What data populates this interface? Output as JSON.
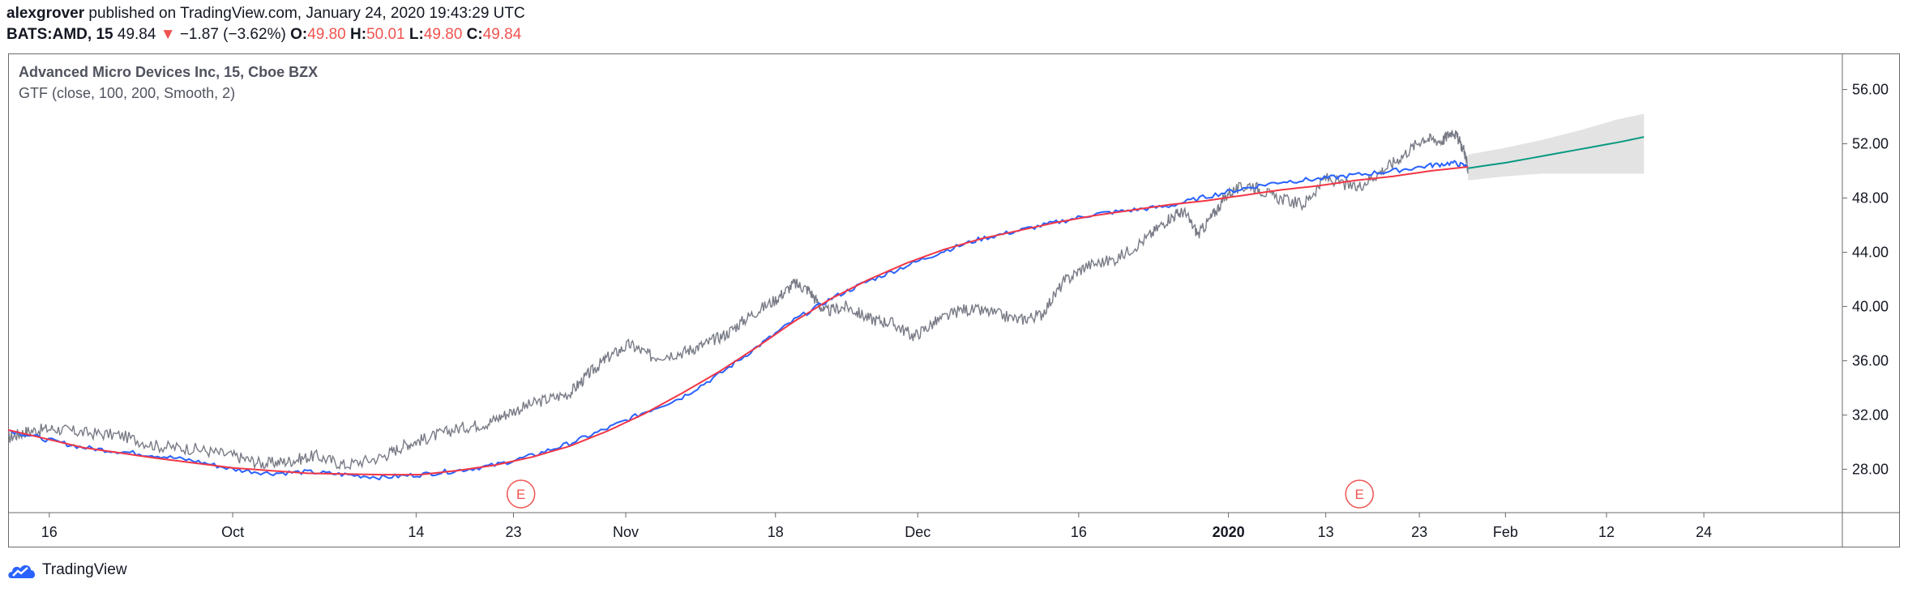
{
  "header": {
    "author": "alexgrover",
    "published_text": "published on TradingView.com, January 24, 2020 19:43:29 UTC",
    "symbol": "BATS:AMD, 15",
    "price": "49.84",
    "change": "−1.87 (−3.62%)",
    "open_label": "O:",
    "open": "49.80",
    "high_label": "H:",
    "high": "50.01",
    "low_label": "L:",
    "low": "49.80",
    "close_label": "C:",
    "close": "49.84"
  },
  "legend": {
    "title": "Advanced Micro Devices Inc, 15, Cboe BZX",
    "indicator": "GTF (close, 100, 200, Smooth, 2)"
  },
  "footer": {
    "brand": "TradingView"
  },
  "chart_data": {
    "type": "line",
    "x_tick_labels": [
      "16",
      "Oct",
      "14",
      "23",
      "Nov",
      "18",
      "Dec",
      "16",
      "2020",
      "13",
      "23",
      "Feb",
      "12",
      "24"
    ],
    "x_tick_pos": [
      0.11,
      0.6,
      1.09,
      1.35,
      1.65,
      2.05,
      2.43,
      2.86,
      3.26,
      3.52,
      3.77,
      4.0,
      4.27,
      4.53
    ],
    "y_ticks": [
      28,
      32,
      36,
      40,
      44,
      48,
      52,
      56
    ],
    "y_tick_labels": [
      "28.00",
      "32.00",
      "36.00",
      "40.00",
      "44.00",
      "48.00",
      "52.00",
      "56.00"
    ],
    "ylim": [
      24.8,
      58.6
    ],
    "xlim": [
      0,
      4.9
    ],
    "earnings_markers": [
      {
        "x": 1.37,
        "label": "E"
      },
      {
        "x": 3.61,
        "label": "E"
      }
    ],
    "series": [
      {
        "color": "#787b86",
        "style": "price",
        "points": [
          [
            0,
            30.3
          ],
          [
            0.05,
            30.8
          ],
          [
            0.12,
            31.0
          ],
          [
            0.2,
            30.7
          ],
          [
            0.3,
            30.5
          ],
          [
            0.4,
            29.7
          ],
          [
            0.5,
            29.5
          ],
          [
            0.6,
            29.0
          ],
          [
            0.68,
            28.4
          ],
          [
            0.75,
            28.6
          ],
          [
            0.82,
            29.0
          ],
          [
            0.9,
            28.3
          ],
          [
            1.0,
            28.9
          ],
          [
            1.06,
            29.8
          ],
          [
            1.12,
            30.3
          ],
          [
            1.2,
            31.0
          ],
          [
            1.28,
            31.4
          ],
          [
            1.34,
            32.2
          ],
          [
            1.42,
            33.0
          ],
          [
            1.5,
            33.6
          ],
          [
            1.55,
            35.0
          ],
          [
            1.6,
            36.2
          ],
          [
            1.66,
            37.2
          ],
          [
            1.72,
            36.3
          ],
          [
            1.8,
            36.6
          ],
          [
            1.86,
            37.2
          ],
          [
            1.92,
            38.0
          ],
          [
            1.98,
            39.3
          ],
          [
            2.05,
            40.5
          ],
          [
            2.1,
            41.7
          ],
          [
            2.14,
            41.2
          ],
          [
            2.18,
            39.6
          ],
          [
            2.24,
            40.0
          ],
          [
            2.3,
            39.1
          ],
          [
            2.36,
            38.8
          ],
          [
            2.42,
            37.8
          ],
          [
            2.48,
            38.9
          ],
          [
            2.55,
            39.8
          ],
          [
            2.62,
            39.6
          ],
          [
            2.7,
            39.0
          ],
          [
            2.76,
            39.4
          ],
          [
            2.82,
            41.8
          ],
          [
            2.88,
            43.0
          ],
          [
            2.96,
            43.5
          ],
          [
            3.04,
            45.0
          ],
          [
            3.1,
            46.5
          ],
          [
            3.14,
            47.0
          ],
          [
            3.18,
            45.3
          ],
          [
            3.22,
            46.8
          ],
          [
            3.26,
            48.4
          ],
          [
            3.32,
            49.0
          ],
          [
            3.38,
            48.1
          ],
          [
            3.46,
            47.5
          ],
          [
            3.52,
            49.5
          ],
          [
            3.6,
            48.7
          ],
          [
            3.66,
            49.8
          ],
          [
            3.72,
            51.0
          ],
          [
            3.78,
            52.4
          ],
          [
            3.83,
            52.2
          ],
          [
            3.86,
            53.0
          ],
          [
            3.89,
            51.5
          ],
          [
            3.9,
            50.1
          ]
        ]
      },
      {
        "color": "#2962ff",
        "style": "line",
        "points": [
          [
            0,
            30.9
          ],
          [
            0.1,
            30.2
          ],
          [
            0.2,
            29.6
          ],
          [
            0.3,
            29.3
          ],
          [
            0.4,
            29.0
          ],
          [
            0.5,
            28.6
          ],
          [
            0.6,
            28.0
          ],
          [
            0.7,
            27.7
          ],
          [
            0.8,
            27.8
          ],
          [
            0.9,
            27.6
          ],
          [
            1.0,
            27.4
          ],
          [
            1.1,
            27.6
          ],
          [
            1.2,
            27.9
          ],
          [
            1.3,
            28.3
          ],
          [
            1.4,
            29.0
          ],
          [
            1.5,
            29.9
          ],
          [
            1.6,
            31.0
          ],
          [
            1.7,
            32.2
          ],
          [
            1.8,
            33.3
          ],
          [
            1.9,
            35.0
          ],
          [
            2.0,
            37.0
          ],
          [
            2.1,
            39.0
          ],
          [
            2.2,
            40.6
          ],
          [
            2.3,
            41.9
          ],
          [
            2.4,
            43.0
          ],
          [
            2.5,
            44.1
          ],
          [
            2.6,
            45.0
          ],
          [
            2.7,
            45.6
          ],
          [
            2.8,
            46.2
          ],
          [
            2.9,
            46.8
          ],
          [
            3.0,
            47.1
          ],
          [
            3.1,
            47.4
          ],
          [
            3.2,
            48.1
          ],
          [
            3.3,
            48.7
          ],
          [
            3.4,
            49.2
          ],
          [
            3.5,
            49.4
          ],
          [
            3.6,
            49.7
          ],
          [
            3.7,
            50.0
          ],
          [
            3.8,
            50.4
          ],
          [
            3.86,
            50.6
          ],
          [
            3.9,
            50.3
          ]
        ]
      },
      {
        "color": "#f23645",
        "style": "line",
        "points": [
          [
            0,
            30.9
          ],
          [
            0.2,
            29.6
          ],
          [
            0.4,
            28.8
          ],
          [
            0.6,
            28.1
          ],
          [
            0.8,
            27.7
          ],
          [
            1.0,
            27.6
          ],
          [
            1.1,
            27.6
          ],
          [
            1.2,
            27.9
          ],
          [
            1.3,
            28.3
          ],
          [
            1.4,
            28.9
          ],
          [
            1.5,
            29.7
          ],
          [
            1.6,
            30.8
          ],
          [
            1.7,
            32.1
          ],
          [
            1.8,
            33.6
          ],
          [
            1.9,
            35.2
          ],
          [
            2.0,
            37.0
          ],
          [
            2.1,
            38.9
          ],
          [
            2.2,
            40.6
          ],
          [
            2.3,
            42.0
          ],
          [
            2.4,
            43.2
          ],
          [
            2.5,
            44.2
          ],
          [
            2.6,
            45.0
          ],
          [
            2.7,
            45.6
          ],
          [
            2.8,
            46.2
          ],
          [
            2.9,
            46.7
          ],
          [
            3.0,
            47.1
          ],
          [
            3.1,
            47.5
          ],
          [
            3.2,
            47.8
          ],
          [
            3.3,
            48.2
          ],
          [
            3.4,
            48.6
          ],
          [
            3.5,
            48.9
          ],
          [
            3.6,
            49.3
          ],
          [
            3.7,
            49.6
          ],
          [
            3.8,
            50.0
          ],
          [
            3.9,
            50.3
          ]
        ]
      },
      {
        "color": "#089981",
        "style": "line",
        "points": [
          [
            3.9,
            50.2
          ],
          [
            4.0,
            50.6
          ],
          [
            4.1,
            51.1
          ],
          [
            4.2,
            51.6
          ],
          [
            4.3,
            52.1
          ],
          [
            4.37,
            52.5
          ]
        ]
      }
    ],
    "forecast_band": {
      "upper": [
        [
          3.9,
          51.2
        ],
        [
          4.0,
          51.7
        ],
        [
          4.1,
          52.3
        ],
        [
          4.2,
          53.0
        ],
        [
          4.3,
          53.8
        ],
        [
          4.37,
          54.2
        ]
      ],
      "lower": [
        [
          3.9,
          49.3
        ],
        [
          4.0,
          49.6
        ],
        [
          4.1,
          49.8
        ],
        [
          4.2,
          49.8
        ],
        [
          4.3,
          49.8
        ],
        [
          4.37,
          49.8
        ]
      ]
    }
  }
}
